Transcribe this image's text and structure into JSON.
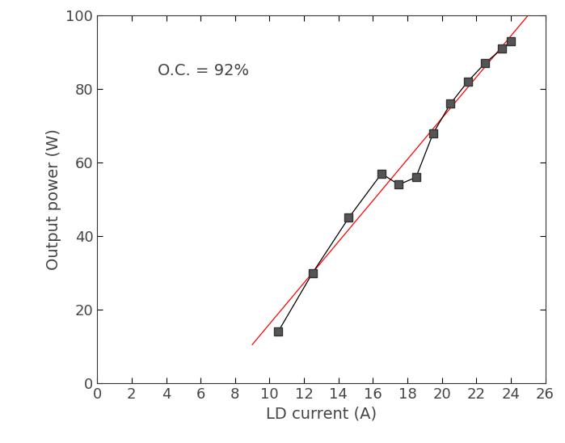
{
  "chart_data": {
    "type": "line",
    "x_label": "LD current (A)",
    "y_label": "Output power (W)",
    "annotations": [
      "O.C. = 92%"
    ],
    "series": [
      {
        "color": "#000000",
        "marker": "square",
        "line_style": "solid",
        "x": [
          10.5,
          12.5,
          14.6,
          16.5,
          17.5,
          18.5,
          19.5,
          20.5,
          21.5,
          22.5,
          23.5,
          24.0
        ],
        "values": [
          14,
          30,
          45,
          57,
          54,
          56,
          68,
          76,
          82,
          87,
          91,
          93
        ]
      },
      {
        "color": "#ff0000",
        "marker": "none",
        "line_style": "solid",
        "x": [
          9,
          25
        ],
        "values": [
          10.5,
          100
        ]
      }
    ],
    "xlim": [
      0,
      26
    ],
    "xticks": [
      0,
      2,
      4,
      6,
      8,
      10,
      12,
      14,
      16,
      18,
      20,
      22,
      24,
      26
    ],
    "ylim": [
      0,
      100
    ],
    "yticks": [
      0,
      20,
      40,
      60,
      80,
      100
    ],
    "grid": false
  }
}
